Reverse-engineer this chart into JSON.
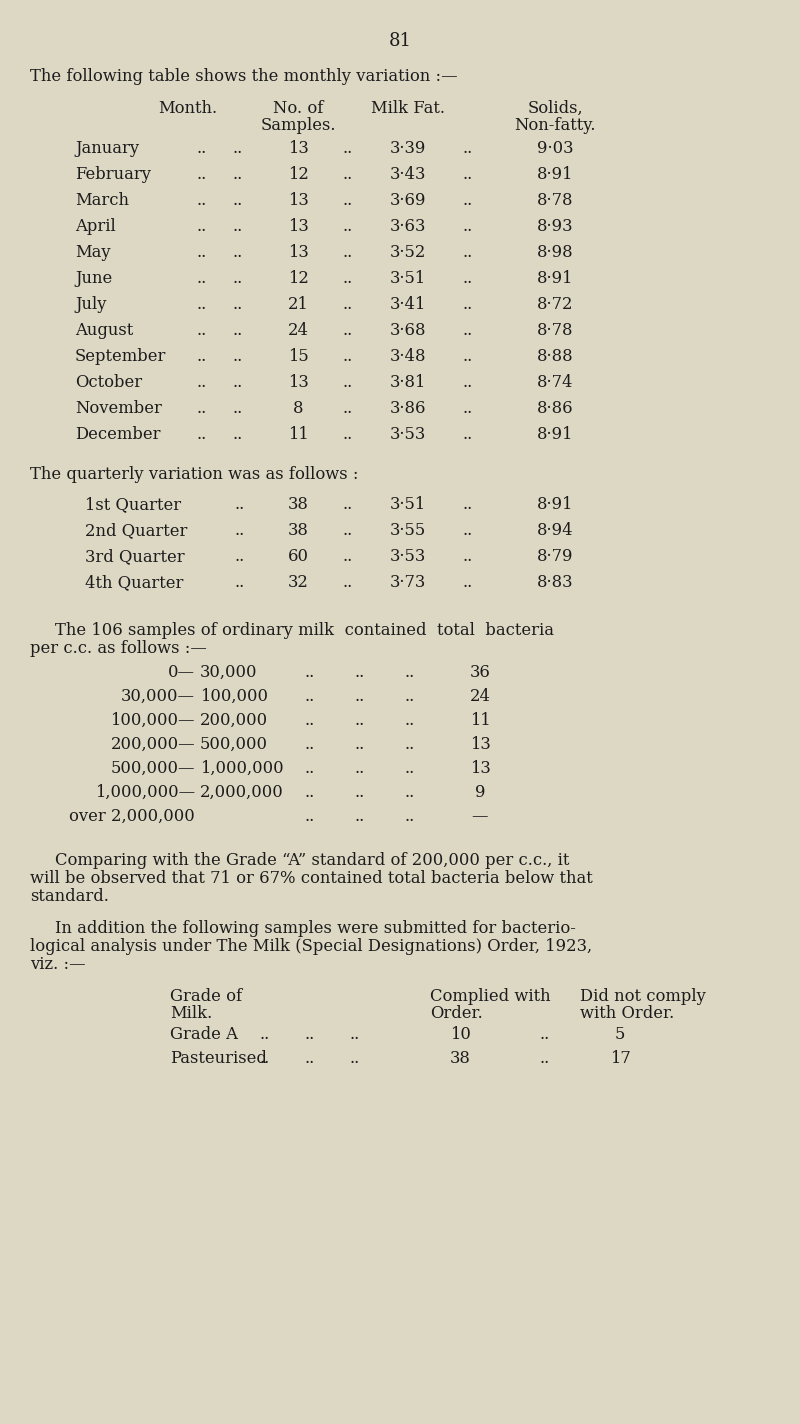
{
  "bg_color": "#ddd8c4",
  "page_number": "81",
  "text_color": "#1c1c1c",
  "font_family": "serif",
  "body_fontsize": 11.8,
  "header_fontsize": 11.8,
  "intro_text": "The following table shows the monthly variation :—",
  "monthly_data": [
    [
      "January",
      "..",
      "..",
      "13",
      "..",
      "3·39",
      "..",
      "9·03"
    ],
    [
      "February",
      "..",
      "..",
      "12",
      "..",
      "3·43",
      "..",
      "8·91"
    ],
    [
      "March",
      "..",
      "..",
      "13",
      "..",
      "3·69",
      "..",
      "8·78"
    ],
    [
      "April",
      "..",
      "..",
      "13",
      "..",
      "3·63",
      "..",
      "8·93"
    ],
    [
      "May",
      "..",
      "..",
      "13",
      "..",
      "3·52",
      "..",
      "8·98"
    ],
    [
      "June",
      "..",
      "..",
      "12",
      "..",
      "3·51",
      "..",
      "8·91"
    ],
    [
      "July",
      "..",
      "..",
      "21",
      "..",
      "3·41",
      "/..",
      "8·72"
    ],
    [
      "August",
      "..",
      "..",
      "24",
      "..",
      "3·68",
      "..",
      "8·78"
    ],
    [
      "September",
      ".",
      "..",
      "15",
      "..",
      "3·48",
      "..",
      "8·88"
    ],
    [
      "October",
      "..",
      "..",
      "13",
      "..",
      "3·81",
      "..",
      "8·74"
    ],
    [
      "November",
      "..",
      "..",
      "8",
      "..",
      "3·86",
      "..",
      "8·86"
    ],
    [
      "December",
      "..",
      "..",
      "11",
      "..",
      "3·53",
      "..",
      "8·91"
    ]
  ],
  "quarterly_intro": "The quarterly variation was as follows :",
  "quarterly_data": [
    [
      "1st Quarter",
      "..",
      "38",
      "..",
      "3·51",
      "..",
      "8·91"
    ],
    [
      "2nd Quarter",
      "..",
      "38",
      "..",
      "3·55",
      "..",
      "8·94"
    ],
    [
      "3rd Quarter",
      "..",
      "60",
      "..",
      "3·53",
      "..",
      "8·79"
    ],
    [
      "4th Quarter",
      "..",
      "32",
      "..",
      "3·73",
      "..",
      "8·83"
    ]
  ],
  "bacteria_intro_1": "The 106 samples of ordinary milk  contained  total  bacteria",
  "bacteria_intro_2": "per c.c. as follows :—",
  "bacteria_data": [
    [
      "0—",
      "30,000",
      "..",
      "..",
      "..",
      "36"
    ],
    [
      "30,000—",
      "100,000",
      "..",
      "..",
      "..",
      "24"
    ],
    [
      "100,000—",
      "200,000",
      "..",
      "..",
      "..",
      "11"
    ],
    [
      "200,000—",
      "500,000",
      "..",
      "..",
      "..",
      "13"
    ],
    [
      "500,000—1,000,000",
      "",
      "..",
      "..",
      "..",
      "13"
    ],
    [
      "1,000,000—2,000,000",
      "",
      "..",
      "..",
      "..",
      "9"
    ],
    [
      "over 2,000,000",
      "",
      "..",
      "..",
      "..",
      "—"
    ]
  ],
  "grade_a_text_1": "Comparing with the Grade “A” standard of 200,000 per c.c., it",
  "grade_a_text_2": "will be observed that 71 or 67% contained total bacteria below that",
  "grade_a_text_3": "standard.",
  "bacterio_intro_1": "In addition the following samples were submitted for bacterio-",
  "bacterio_intro_2": "logical analysis under The Milk (Special Designations) Order, 1923,",
  "bacterio_intro_3": "viz. :—",
  "grade_hdr_1": "Grade of",
  "grade_hdr_2": "Milk.",
  "grade_hdr_complied_1": "Complied with",
  "grade_hdr_complied_2": "Order.",
  "grade_hdr_notcomply_1": "Did not comply",
  "grade_hdr_notcomply_2": "with Order.",
  "grade_table_data": [
    [
      "Grade A",
      "..",
      "..",
      "..",
      "10",
      "..",
      "5"
    ],
    [
      "Pasteurised",
      "..",
      "..",
      "..",
      "38",
      "..",
      "17"
    ]
  ]
}
